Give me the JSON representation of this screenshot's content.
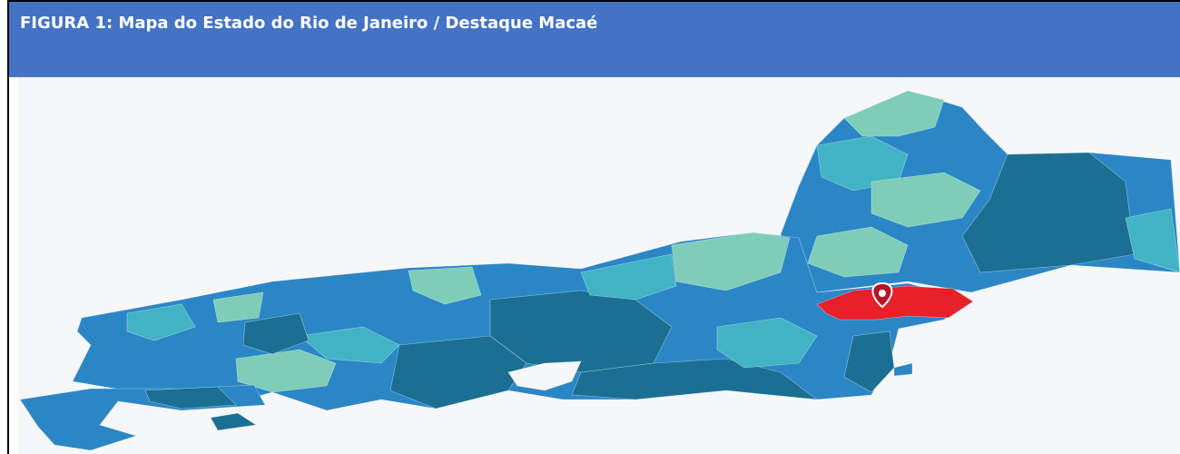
{
  "header": {
    "title": "FIGURA 1: Mapa do Estado do Rio de Janeiro / Destaque Macaé"
  }
}
